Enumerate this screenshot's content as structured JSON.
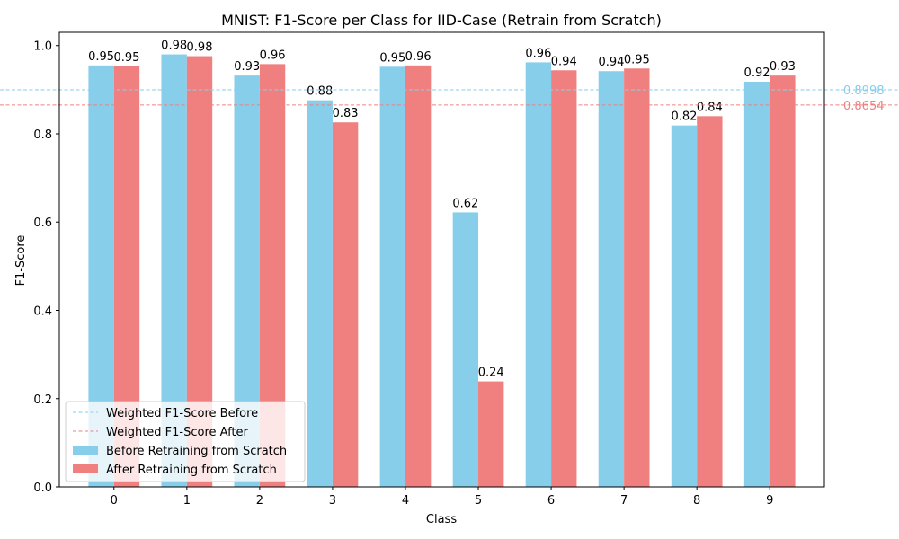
{
  "chart_data": {
    "type": "bar",
    "title": "MNIST: F1-Score per Class for IID-Case (Retrain from Scratch)",
    "xlabel": "Class",
    "ylabel": "F1-Score",
    "ylim": [
      0,
      1.03
    ],
    "yticks": [
      "0.0",
      "0.2",
      "0.4",
      "0.6",
      "0.8",
      "1.0"
    ],
    "categories": [
      "0",
      "1",
      "2",
      "3",
      "4",
      "5",
      "6",
      "7",
      "8",
      "9"
    ],
    "series": [
      {
        "name": "Before Retraining from Scratch",
        "color": "#87ceeb",
        "values": [
          0.955,
          0.98,
          0.932,
          0.876,
          0.952,
          0.622,
          0.962,
          0.942,
          0.819,
          0.918
        ],
        "labels": [
          "0.95",
          "0.98",
          "0.93",
          "0.88",
          "0.95",
          "0.62",
          "0.96",
          "0.94",
          "0.82",
          "0.92"
        ]
      },
      {
        "name": "After Retraining from Scratch",
        "color": "#f08080",
        "values": [
          0.953,
          0.976,
          0.958,
          0.826,
          0.955,
          0.239,
          0.944,
          0.948,
          0.84,
          0.932
        ],
        "labels": [
          "0.95",
          "0.98",
          "0.96",
          "0.83",
          "0.96",
          "0.24",
          "0.94",
          "0.95",
          "0.84",
          "0.93"
        ]
      }
    ],
    "reference_lines": [
      {
        "name": "Weighted F1-Score Before",
        "value": 0.8998,
        "label": "0.8998",
        "color": "#87ceeb",
        "style": "dashed"
      },
      {
        "name": "Weighted F1-Score After",
        "value": 0.8654,
        "label": "0.8654",
        "color": "#f08080",
        "style": "dashed"
      }
    ],
    "legend_position": "lower-left",
    "grid": false
  }
}
